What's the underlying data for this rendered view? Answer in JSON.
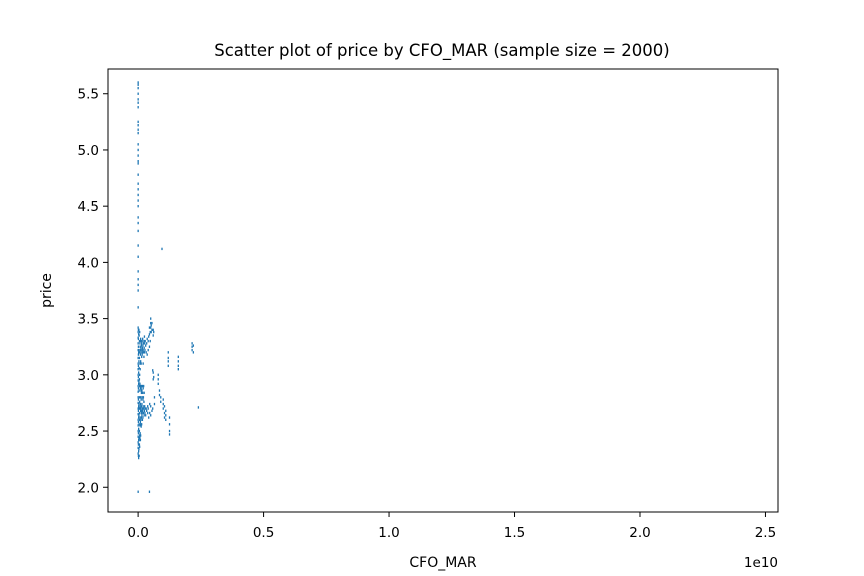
{
  "chart_data": {
    "type": "scatter",
    "title": "Scatter plot of price by CFO_MAR (sample size = 2000)",
    "xlabel": "CFO_MAR",
    "ylabel": "price",
    "x_offset_label": "1e10",
    "x_multiplier": 10000000000.0,
    "xlim": [
      -0.12,
      2.55
    ],
    "ylim": [
      1.78,
      5.72
    ],
    "xticks": [
      0.0,
      0.5,
      1.0,
      1.5,
      2.0,
      2.5
    ],
    "xtick_labels": [
      "0.0",
      "0.5",
      "1.0",
      "1.5",
      "2.0",
      "2.5"
    ],
    "yticks": [
      2.0,
      2.5,
      3.0,
      3.5,
      4.0,
      4.5,
      5.0,
      5.5
    ],
    "ytick_labels": [
      "2.0",
      "2.5",
      "3.0",
      "3.5",
      "4.0",
      "4.5",
      "5.0",
      "5.5"
    ],
    "grid": false,
    "marker_color": "#1f77b4",
    "series": [
      {
        "points": [
          [
            0.0,
            1.96
          ],
          [
            0.045,
            1.96
          ],
          [
            0.095,
            4.12
          ],
          [
            0.24,
            2.71
          ],
          [
            0.0,
            5.6
          ],
          [
            0.0,
            5.58
          ],
          [
            0.0,
            5.55
          ],
          [
            0.0,
            5.5
          ],
          [
            0.0,
            5.45
          ],
          [
            0.0,
            5.42
          ],
          [
            0.0,
            5.38
          ],
          [
            0.0,
            5.25
          ],
          [
            0.0,
            5.22
          ],
          [
            0.0,
            5.18
          ],
          [
            0.0,
            5.15
          ],
          [
            0.0,
            5.05
          ],
          [
            0.0,
            5.0
          ],
          [
            0.0,
            4.95
          ],
          [
            0.0,
            4.9
          ],
          [
            0.0,
            4.88
          ],
          [
            0.0,
            4.78
          ],
          [
            0.0,
            4.7
          ],
          [
            0.0,
            4.65
          ],
          [
            0.0,
            4.6
          ],
          [
            0.0,
            4.55
          ],
          [
            0.0,
            4.5
          ],
          [
            0.0,
            4.4
          ],
          [
            0.0,
            4.35
          ],
          [
            0.0,
            4.28
          ],
          [
            0.0,
            4.15
          ],
          [
            0.0,
            4.05
          ],
          [
            0.0,
            3.92
          ],
          [
            0.0,
            3.85
          ],
          [
            0.0,
            3.8
          ],
          [
            0.0,
            3.75
          ],
          [
            0.0,
            3.6
          ],
          [
            0.0,
            3.42
          ],
          [
            0.0,
            3.38
          ],
          [
            0.0,
            3.33
          ],
          [
            0.0,
            3.28
          ],
          [
            0.0,
            3.22
          ],
          [
            0.0,
            3.15
          ],
          [
            0.0,
            3.1
          ],
          [
            0.0,
            3.05
          ],
          [
            0.0,
            3.0
          ],
          [
            0.0,
            2.95
          ],
          [
            0.0,
            2.9
          ],
          [
            0.0,
            2.85
          ],
          [
            0.0,
            2.8
          ],
          [
            0.0,
            2.75
          ],
          [
            0.0,
            2.7
          ],
          [
            0.0,
            2.65
          ],
          [
            0.0,
            2.6
          ],
          [
            0.0,
            2.55
          ],
          [
            0.0,
            2.5
          ],
          [
            0.0,
            2.45
          ],
          [
            0.0,
            2.4
          ],
          [
            0.0,
            2.35
          ],
          [
            0.0,
            2.3
          ],
          [
            0.001,
            3.4
          ],
          [
            0.001,
            3.32
          ],
          [
            0.001,
            3.25
          ],
          [
            0.001,
            3.18
          ],
          [
            0.001,
            3.08
          ],
          [
            0.001,
            2.98
          ],
          [
            0.001,
            2.88
          ],
          [
            0.001,
            2.78
          ],
          [
            0.001,
            2.68
          ],
          [
            0.001,
            2.58
          ],
          [
            0.001,
            2.48
          ],
          [
            0.001,
            2.38
          ],
          [
            0.001,
            2.28
          ],
          [
            0.002,
            3.36
          ],
          [
            0.002,
            3.2
          ],
          [
            0.002,
            3.02
          ],
          [
            0.002,
            2.92
          ],
          [
            0.002,
            2.72
          ],
          [
            0.002,
            2.62
          ],
          [
            0.002,
            2.52
          ],
          [
            0.002,
            2.42
          ],
          [
            0.002,
            2.32
          ],
          [
            0.002,
            2.26
          ],
          [
            0.003,
            3.4
          ],
          [
            0.003,
            3.12
          ],
          [
            0.003,
            2.94
          ],
          [
            0.003,
            2.74
          ],
          [
            0.003,
            2.64
          ],
          [
            0.003,
            2.44
          ],
          [
            0.003,
            2.34
          ],
          [
            0.004,
            3.35
          ],
          [
            0.004,
            3.22
          ],
          [
            0.004,
            3.06
          ],
          [
            0.004,
            2.86
          ],
          [
            0.004,
            2.7
          ],
          [
            0.004,
            2.56
          ],
          [
            0.004,
            2.42
          ],
          [
            0.004,
            2.28
          ],
          [
            0.005,
            3.3
          ],
          [
            0.005,
            3.15
          ],
          [
            0.005,
            2.96
          ],
          [
            0.005,
            2.8
          ],
          [
            0.005,
            2.66
          ],
          [
            0.005,
            2.5
          ],
          [
            0.005,
            2.38
          ],
          [
            0.006,
            3.38
          ],
          [
            0.006,
            3.2
          ],
          [
            0.006,
            3.0
          ],
          [
            0.006,
            2.9
          ],
          [
            0.006,
            2.76
          ],
          [
            0.006,
            2.6
          ],
          [
            0.006,
            2.46
          ],
          [
            0.006,
            2.36
          ],
          [
            0.007,
            3.28
          ],
          [
            0.007,
            3.1
          ],
          [
            0.007,
            2.92
          ],
          [
            0.007,
            2.7
          ],
          [
            0.007,
            2.55
          ],
          [
            0.007,
            2.44
          ],
          [
            0.008,
            3.25
          ],
          [
            0.008,
            3.05
          ],
          [
            0.008,
            2.9
          ],
          [
            0.008,
            2.72
          ],
          [
            0.008,
            2.62
          ],
          [
            0.008,
            2.48
          ],
          [
            0.009,
            3.3
          ],
          [
            0.009,
            3.18
          ],
          [
            0.009,
            2.88
          ],
          [
            0.009,
            2.74
          ],
          [
            0.009,
            2.58
          ],
          [
            0.009,
            2.42
          ],
          [
            0.01,
            3.32
          ],
          [
            0.01,
            3.22
          ],
          [
            0.01,
            3.12
          ],
          [
            0.01,
            2.9
          ],
          [
            0.01,
            2.8
          ],
          [
            0.01,
            2.68
          ],
          [
            0.01,
            2.56
          ],
          [
            0.01,
            2.46
          ],
          [
            0.011,
            3.24
          ],
          [
            0.011,
            2.86
          ],
          [
            0.011,
            2.7
          ],
          [
            0.011,
            2.6
          ],
          [
            0.012,
            3.3
          ],
          [
            0.012,
            3.2
          ],
          [
            0.012,
            3.1
          ],
          [
            0.012,
            2.88
          ],
          [
            0.012,
            2.78
          ],
          [
            0.012,
            2.66
          ],
          [
            0.012,
            2.54
          ],
          [
            0.013,
            3.26
          ],
          [
            0.013,
            2.84
          ],
          [
            0.013,
            2.72
          ],
          [
            0.013,
            2.62
          ],
          [
            0.014,
            3.28
          ],
          [
            0.014,
            3.16
          ],
          [
            0.014,
            2.9
          ],
          [
            0.014,
            2.68
          ],
          [
            0.014,
            2.56
          ],
          [
            0.015,
            3.22
          ],
          [
            0.015,
            2.86
          ],
          [
            0.015,
            2.74
          ],
          [
            0.015,
            2.64
          ],
          [
            0.016,
            3.3
          ],
          [
            0.016,
            3.18
          ],
          [
            0.016,
            2.8
          ],
          [
            0.016,
            2.66
          ],
          [
            0.017,
            3.24
          ],
          [
            0.017,
            2.9
          ],
          [
            0.017,
            2.7
          ],
          [
            0.017,
            2.6
          ],
          [
            0.018,
            3.32
          ],
          [
            0.018,
            3.2
          ],
          [
            0.018,
            2.84
          ],
          [
            0.018,
            2.68
          ],
          [
            0.019,
            3.26
          ],
          [
            0.019,
            2.78
          ],
          [
            0.019,
            2.62
          ],
          [
            0.02,
            3.22
          ],
          [
            0.02,
            3.1
          ],
          [
            0.02,
            2.88
          ],
          [
            0.02,
            2.72
          ],
          [
            0.021,
            3.28
          ],
          [
            0.021,
            2.8
          ],
          [
            0.021,
            2.66
          ],
          [
            0.022,
            3.2
          ],
          [
            0.022,
            2.9
          ],
          [
            0.022,
            2.7
          ],
          [
            0.023,
            3.3
          ],
          [
            0.023,
            3.16
          ],
          [
            0.023,
            2.76
          ],
          [
            0.024,
            3.24
          ],
          [
            0.024,
            2.84
          ],
          [
            0.024,
            2.64
          ],
          [
            0.025,
            3.34
          ],
          [
            0.025,
            3.2
          ],
          [
            0.025,
            2.68
          ],
          [
            0.026,
            3.28
          ],
          [
            0.026,
            2.72
          ],
          [
            0.027,
            3.22
          ],
          [
            0.027,
            2.66
          ],
          [
            0.028,
            3.3
          ],
          [
            0.028,
            2.7
          ],
          [
            0.03,
            3.26
          ],
          [
            0.03,
            2.64
          ],
          [
            0.032,
            3.2
          ],
          [
            0.032,
            2.7
          ],
          [
            0.034,
            3.28
          ],
          [
            0.034,
            2.68
          ],
          [
            0.036,
            3.32
          ],
          [
            0.036,
            3.18
          ],
          [
            0.038,
            2.72
          ],
          [
            0.038,
            2.66
          ],
          [
            0.04,
            3.3
          ],
          [
            0.04,
            3.22
          ],
          [
            0.04,
            2.7
          ],
          [
            0.042,
            3.34
          ],
          [
            0.042,
            2.62
          ],
          [
            0.045,
            3.42
          ],
          [
            0.045,
            3.36
          ],
          [
            0.045,
            3.25
          ],
          [
            0.046,
            2.74
          ],
          [
            0.046,
            2.66
          ],
          [
            0.048,
            3.38
          ],
          [
            0.048,
            3.3
          ],
          [
            0.05,
            3.5
          ],
          [
            0.05,
            3.46
          ],
          [
            0.05,
            3.42
          ],
          [
            0.05,
            2.72
          ],
          [
            0.05,
            2.64
          ],
          [
            0.052,
            3.44
          ],
          [
            0.052,
            3.38
          ],
          [
            0.055,
            3.46
          ],
          [
            0.055,
            3.4
          ],
          [
            0.055,
            2.68
          ],
          [
            0.058,
            2.7
          ],
          [
            0.058,
            3.04
          ],
          [
            0.06,
            3.4
          ],
          [
            0.06,
            3.35
          ],
          [
            0.06,
            3.02
          ],
          [
            0.06,
            2.96
          ],
          [
            0.062,
            3.38
          ],
          [
            0.062,
            2.98
          ],
          [
            0.065,
            2.8
          ],
          [
            0.065,
            2.74
          ],
          [
            0.08,
            3.0
          ],
          [
            0.08,
            2.96
          ],
          [
            0.08,
            2.92
          ],
          [
            0.085,
            2.86
          ],
          [
            0.085,
            2.82
          ],
          [
            0.09,
            2.8
          ],
          [
            0.09,
            2.76
          ],
          [
            0.1,
            2.78
          ],
          [
            0.1,
            2.74
          ],
          [
            0.1,
            2.7
          ],
          [
            0.105,
            2.72
          ],
          [
            0.105,
            2.66
          ],
          [
            0.105,
            2.62
          ],
          [
            0.11,
            2.68
          ],
          [
            0.11,
            2.64
          ],
          [
            0.11,
            2.6
          ],
          [
            0.12,
            3.2
          ],
          [
            0.12,
            3.15
          ],
          [
            0.12,
            3.12
          ],
          [
            0.12,
            3.08
          ],
          [
            0.125,
            2.62
          ],
          [
            0.125,
            2.56
          ],
          [
            0.125,
            2.5
          ],
          [
            0.125,
            2.47
          ],
          [
            0.16,
            3.16
          ],
          [
            0.16,
            3.12
          ],
          [
            0.16,
            3.08
          ],
          [
            0.16,
            3.05
          ],
          [
            0.215,
            3.28
          ],
          [
            0.215,
            3.25
          ],
          [
            0.215,
            3.22
          ],
          [
            0.22,
            3.26
          ],
          [
            0.22,
            3.2
          ]
        ]
      }
    ]
  }
}
